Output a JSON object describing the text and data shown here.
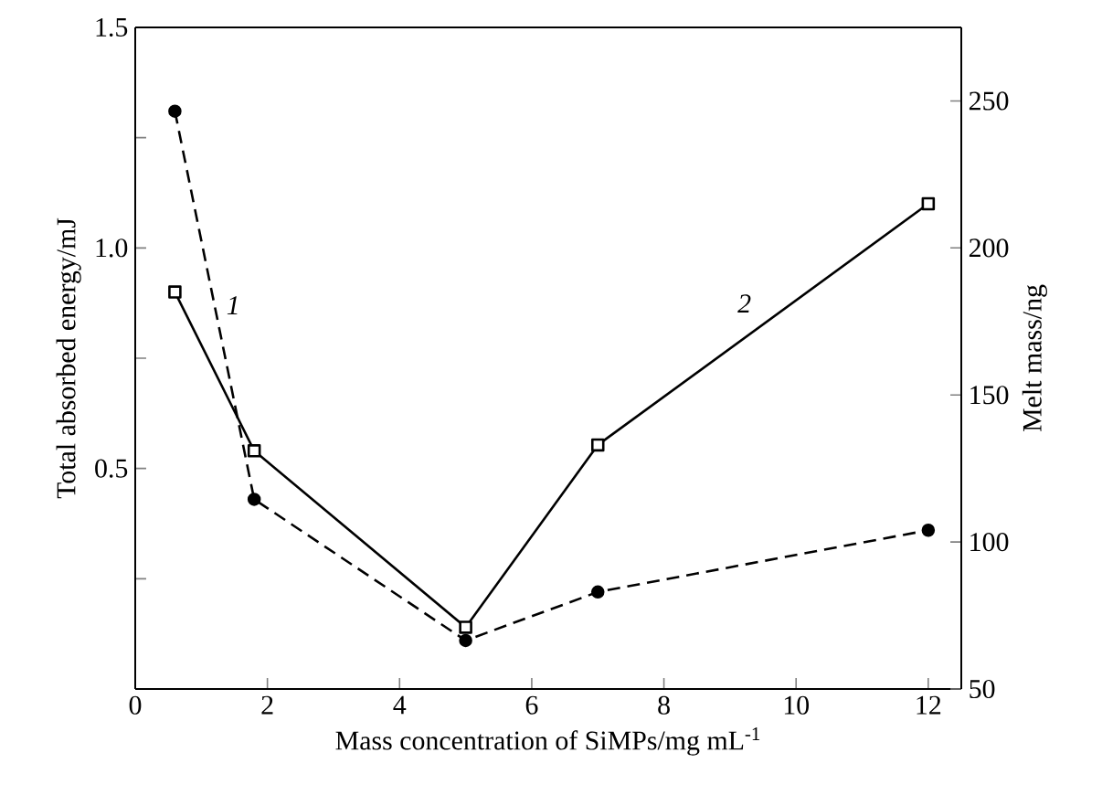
{
  "chart_data": {
    "type": "line",
    "xlabel": "Mass concentration of SiMPs/mg mL$^{-1}$",
    "ylabel": "Total absorbed energy/mJ",
    "y2label": "Melt mass/ng",
    "x": [
      0.6,
      1.8,
      5,
      7,
      12
    ],
    "series": [
      {
        "name": "1",
        "color": "#000000",
        "axis": "y",
        "marker": "circle",
        "line_style": "dashed",
        "values": [
          1.31,
          0.43,
          0.11,
          0.22,
          0.36
        ]
      },
      {
        "name": "2",
        "color": "#000000",
        "axis": "y2",
        "marker": "square",
        "line_style": "solid",
        "values": [
          185,
          131,
          71,
          133,
          215
        ]
      }
    ],
    "xlim": [
      0,
      12.5
    ],
    "xticks": [
      0,
      2,
      4,
      6,
      8,
      10,
      12
    ],
    "ylim": [
      0,
      1.5
    ],
    "yticks": [
      {
        "value": 0.25,
        "label": null
      },
      {
        "value": 0.5,
        "label": "0.5"
      },
      {
        "value": 0.75,
        "label": null
      },
      {
        "value": 1.0,
        "label": "1.0"
      },
      {
        "value": 1.25,
        "label": null
      },
      {
        "value": 1.5,
        "label": "1.5"
      }
    ],
    "y2lim": [
      50,
      275
    ],
    "y2ticks": [
      50,
      100,
      150,
      200,
      250
    ],
    "grid": false
  }
}
